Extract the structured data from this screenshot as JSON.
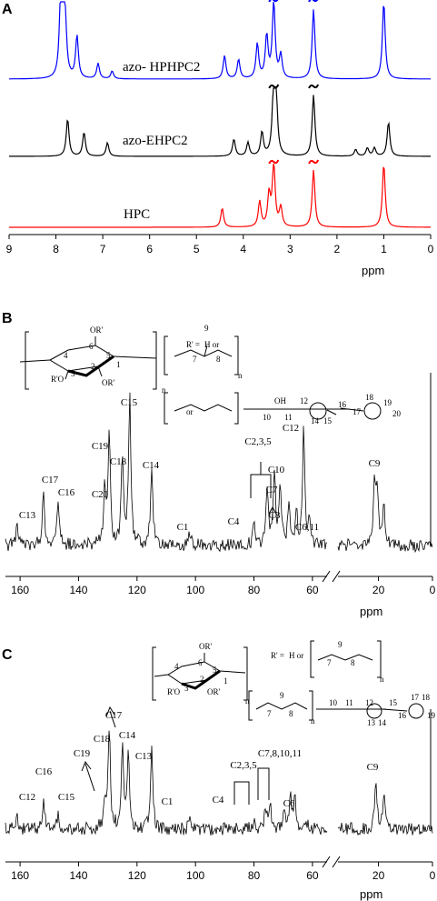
{
  "panels": {
    "a": "A",
    "b": "B",
    "c": "C"
  },
  "chart_data": [
    {
      "type": "line",
      "panel": "A",
      "xlabel": "ppm",
      "xlim": [
        9,
        0
      ],
      "x_reversed": true,
      "x_ticks": [
        "9",
        "8",
        "7",
        "6",
        "5",
        "4",
        "3",
        "2",
        "1",
        "0"
      ],
      "series": [
        {
          "name": "azo- HPHPC2",
          "color": "#0000ff",
          "peaks": [
            [
              7.9,
              0.85
            ],
            [
              7.85,
              0.8
            ],
            [
              7.8,
              0.6
            ],
            [
              7.55,
              0.55
            ],
            [
              7.1,
              0.2
            ],
            [
              6.8,
              0.1
            ],
            [
              4.4,
              0.3
            ],
            [
              4.1,
              0.25
            ],
            [
              3.7,
              0.45
            ],
            [
              3.5,
              0.55
            ],
            [
              3.35,
              1.0
            ],
            [
              3.2,
              0.3
            ],
            [
              2.5,
              0.9
            ],
            [
              1.0,
              1.0
            ]
          ]
        },
        {
          "name": "azo-EHPC2",
          "color": "#000000",
          "peaks": [
            [
              7.75,
              0.55
            ],
            [
              7.4,
              0.35
            ],
            [
              6.9,
              0.2
            ],
            [
              4.2,
              0.25
            ],
            [
              3.9,
              0.2
            ],
            [
              3.6,
              0.35
            ],
            [
              3.35,
              1.0
            ],
            [
              3.3,
              0.8
            ],
            [
              2.5,
              0.9
            ],
            [
              1.6,
              0.1
            ],
            [
              1.35,
              0.12
            ],
            [
              1.2,
              0.12
            ],
            [
              0.9,
              0.5
            ]
          ]
        },
        {
          "name": "HPC",
          "color": "#ff0000",
          "peaks": [
            [
              4.45,
              0.3
            ],
            [
              3.65,
              0.4
            ],
            [
              3.45,
              0.5
            ],
            [
              3.35,
              1.0
            ],
            [
              3.2,
              0.3
            ],
            [
              2.5,
              0.9
            ],
            [
              1.0,
              1.0
            ]
          ]
        }
      ]
    },
    {
      "type": "line",
      "panel": "B",
      "xlabel": "ppm",
      "xlim": [
        165,
        0
      ],
      "x_reversed": true,
      "axis_break": [
        55,
        35
      ],
      "x_ticks": [
        "160",
        "140",
        "120",
        "100",
        "80",
        "60",
        "20",
        "0"
      ],
      "peak_labels": [
        "C13",
        "C17",
        "C16",
        "C20",
        "C19",
        "C18",
        "C15",
        "C14",
        "C1",
        "C4",
        "C2,3,5",
        "C7",
        "C10",
        "C8",
        "C12",
        "C6,11",
        "C9"
      ],
      "peaks": [
        [
          161,
          0.15
        ],
        [
          152,
          0.35
        ],
        [
          147,
          0.3
        ],
        [
          131,
          0.35
        ],
        [
          129.5,
          0.65
        ],
        [
          125,
          0.55
        ],
        [
          122.5,
          0.9
        ],
        [
          115,
          0.5
        ],
        [
          102,
          0.07
        ],
        [
          80,
          0.12
        ],
        [
          75.5,
          0.35
        ],
        [
          73,
          0.45
        ],
        [
          71,
          0.35
        ],
        [
          68,
          0.25
        ],
        [
          65.5,
          0.2
        ],
        [
          63,
          0.72
        ],
        [
          61,
          0.15
        ],
        [
          21.5,
          0.4
        ],
        [
          20.5,
          0.35
        ],
        [
          18,
          0.3
        ]
      ],
      "structure": {
        "r_prime_def": "R' =",
        "h_or": "H or",
        "or_text": "or",
        "n": "n",
        "substituents": [
          "OR'",
          "R'O",
          "OR'"
        ],
        "ring_numbers": [
          "1",
          "2",
          "3",
          "4",
          "5",
          "6"
        ],
        "side_numbers": [
          "7",
          "8",
          "9",
          "10",
          "11",
          "12",
          "13",
          "14",
          "15",
          "16",
          "17",
          "18",
          "19",
          "20"
        ],
        "oh": "OH"
      }
    },
    {
      "type": "line",
      "panel": "C",
      "xlabel": "ppm",
      "xlim": [
        165,
        0
      ],
      "x_reversed": true,
      "axis_break": [
        55,
        35
      ],
      "x_ticks": [
        "160",
        "140",
        "120",
        "100",
        "80",
        "60",
        "20",
        "0"
      ],
      "peak_labels": [
        "C12",
        "C16",
        "C15",
        "C19",
        "C18",
        "C17",
        "C14",
        "C13",
        "C1",
        "C4",
        "C2,3,5",
        "C7,8,10,11",
        "C6",
        "C9"
      ],
      "peaks": [
        [
          161,
          0.1
        ],
        [
          152,
          0.25
        ],
        [
          147,
          0.15
        ],
        [
          131,
          0.3
        ],
        [
          129.5,
          0.9
        ],
        [
          125,
          0.75
        ],
        [
          123,
          0.7
        ],
        [
          115,
          0.72
        ],
        [
          102,
          0.06
        ],
        [
          80,
          0.06
        ],
        [
          76,
          0.2
        ],
        [
          74.5,
          0.22
        ],
        [
          69.5,
          0.18
        ],
        [
          67.5,
          0.3
        ],
        [
          66,
          0.25
        ],
        [
          62,
          0.06
        ],
        [
          21,
          0.5
        ],
        [
          18,
          0.32
        ]
      ],
      "structure": {
        "r_prime_def": "R' =",
        "h_or": "H or",
        "n": "n",
        "substituents": [
          "OR'",
          "R'O",
          "OR'"
        ],
        "ring_numbers": [
          "1",
          "2",
          "3",
          "4",
          "5",
          "6"
        ],
        "side_numbers": [
          "7",
          "8",
          "9",
          "10",
          "11",
          "12",
          "13",
          "14",
          "15",
          "16",
          "17",
          "18",
          "19"
        ]
      }
    }
  ]
}
